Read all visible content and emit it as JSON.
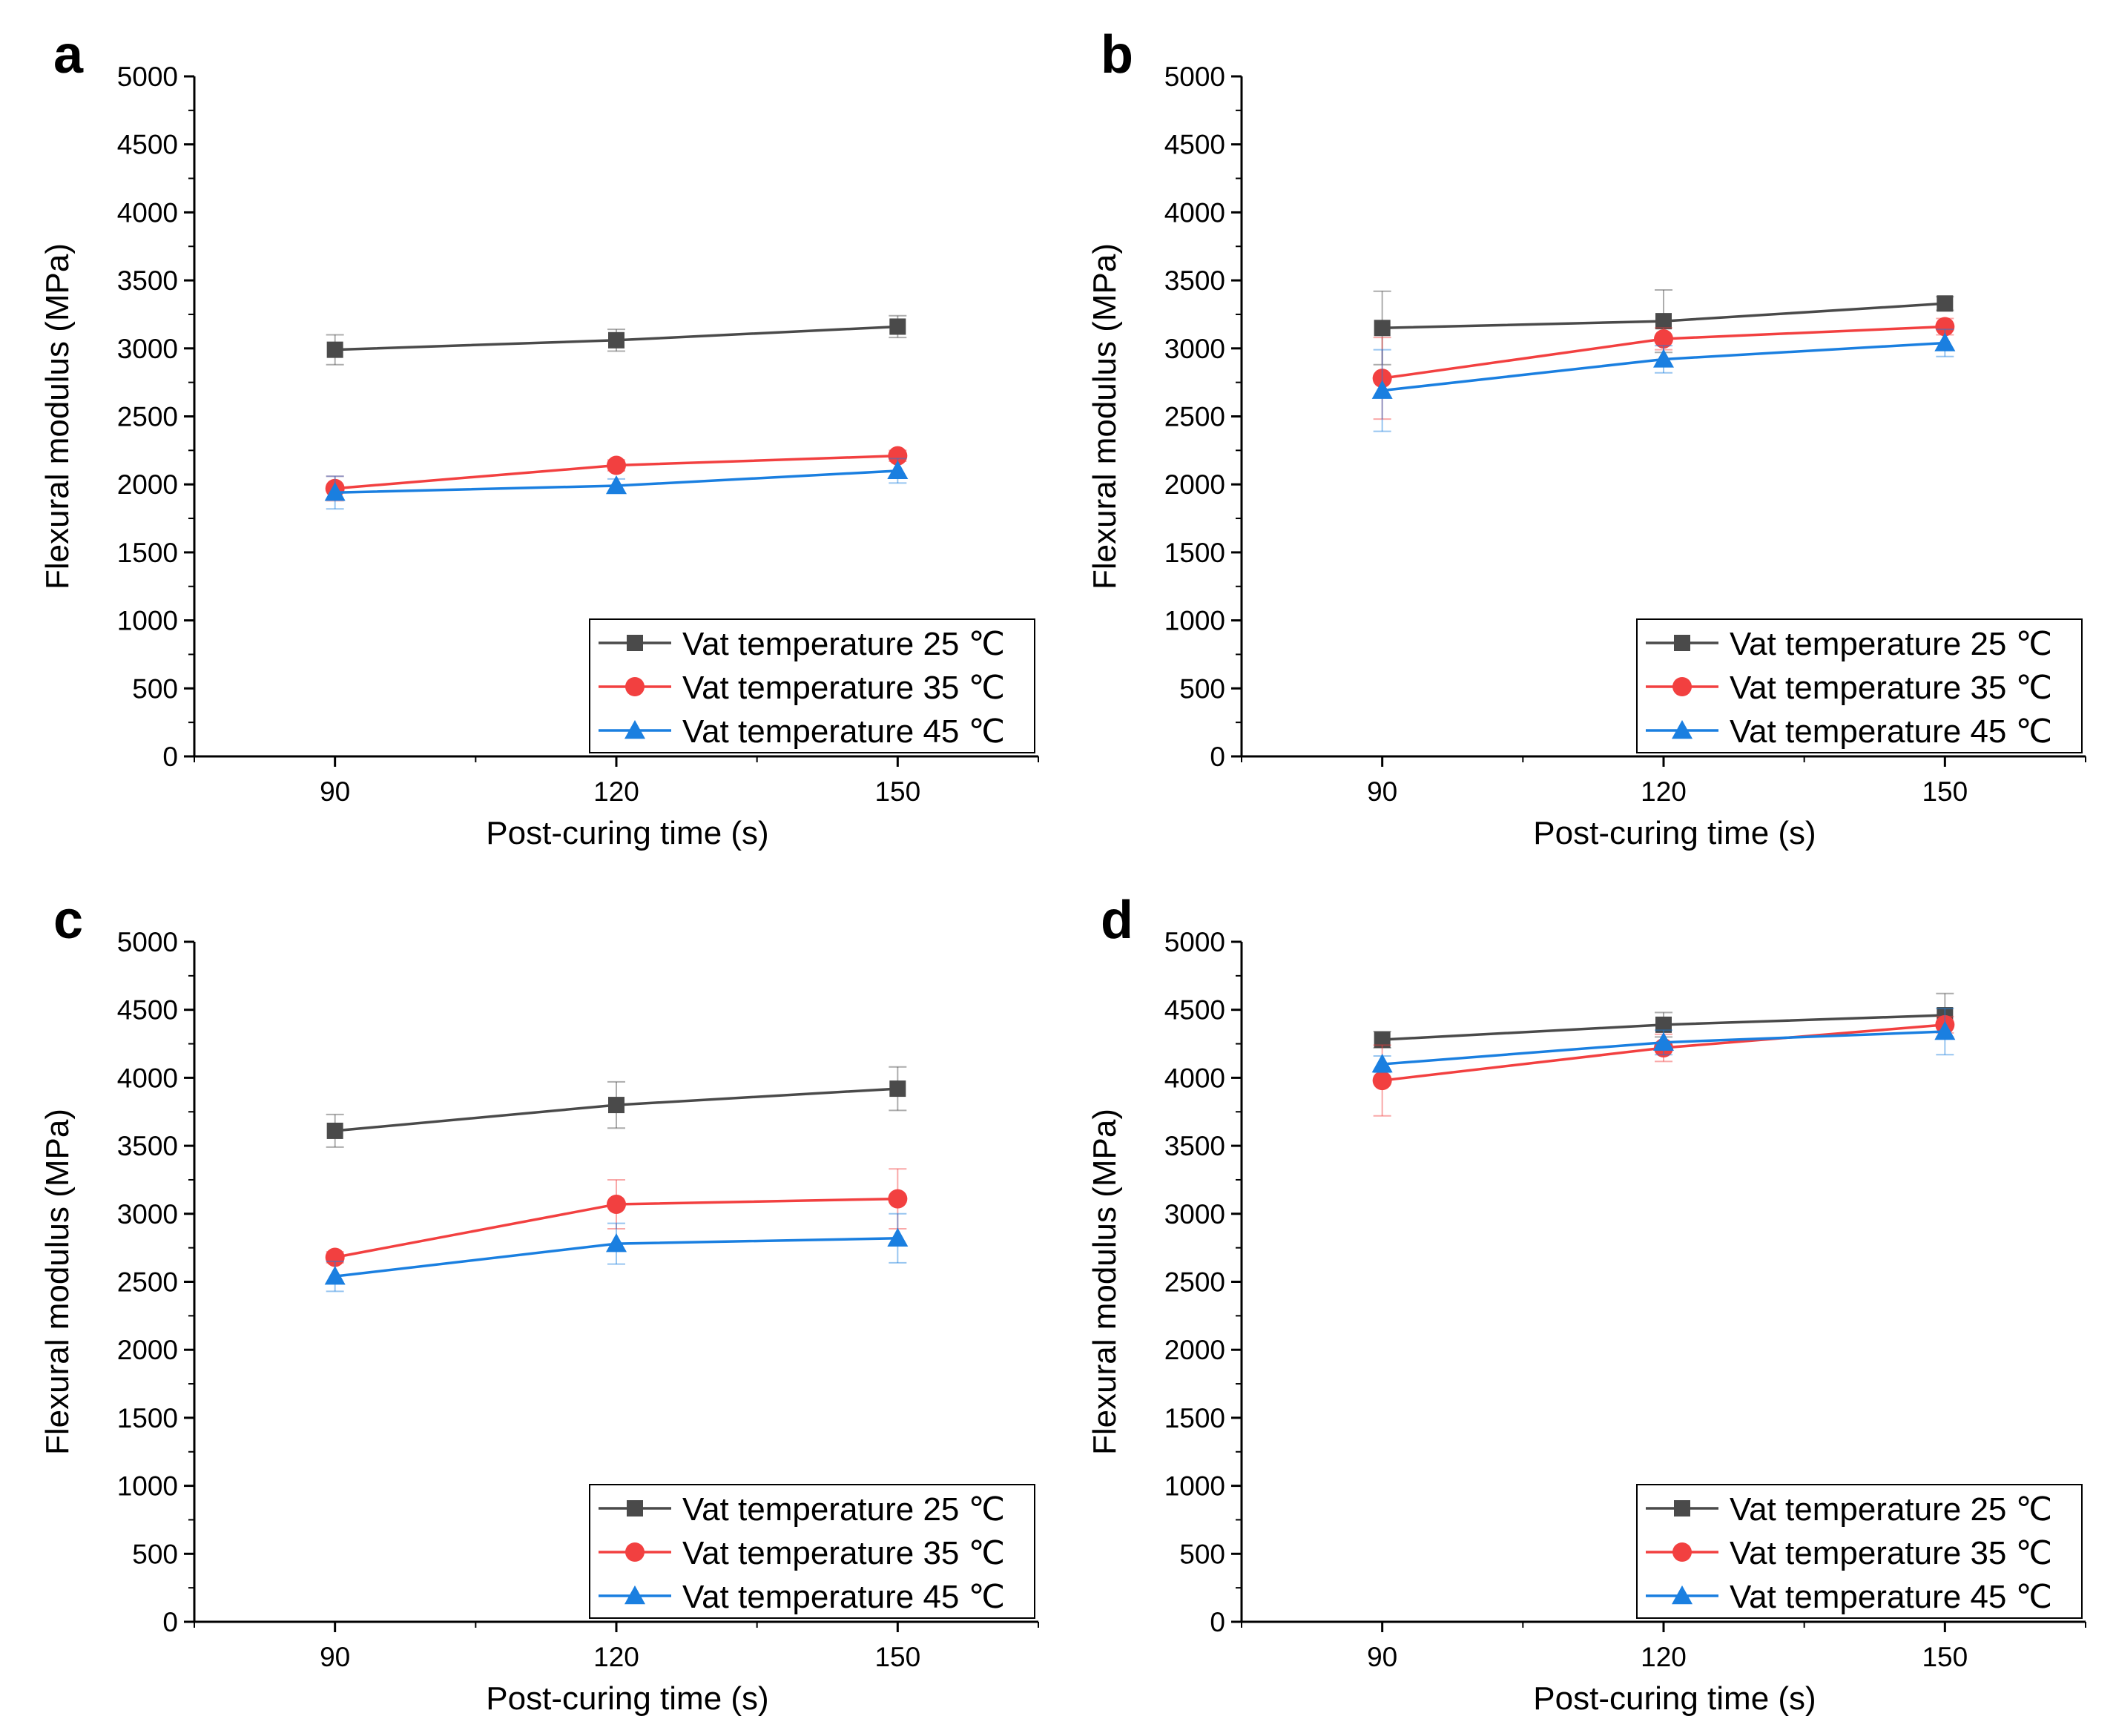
{
  "figure": {
    "x_axis_title": "Post-curing time (s)",
    "y_axis_title": "Flexural modulus (MPa)",
    "legend": [
      "Vat temperature 25 ℃",
      "Vat temperature 35 ℃",
      "Vat temperature 45 ℃"
    ],
    "series_colors": [
      "#4a4a4a",
      "#f24040",
      "#1a7fe0"
    ],
    "markers": [
      "square",
      "circle",
      "triangle"
    ]
  },
  "chart_data": [
    {
      "type": "line",
      "panel": "a",
      "title": "",
      "xlabel": "Post-curing time (s)",
      "ylabel": "Flexural modulus (MPa)",
      "x": [
        90,
        120,
        150
      ],
      "xlim": [
        75,
        165
      ],
      "ylim": [
        0,
        5000
      ],
      "yticks": [
        0,
        500,
        1000,
        1500,
        2000,
        2500,
        3000,
        3500,
        4000,
        4500,
        5000
      ],
      "legend_position": "bottom-right",
      "series": [
        {
          "name": "Vat temperature 25 ℃",
          "values": [
            2990,
            3060,
            3160
          ],
          "errors": [
            110,
            80,
            80
          ]
        },
        {
          "name": "Vat temperature 35 ℃",
          "values": [
            1970,
            2140,
            2210
          ],
          "errors": [
            90,
            40,
            40
          ]
        },
        {
          "name": "Vat temperature 45 ℃",
          "values": [
            1940,
            1990,
            2100
          ],
          "errors": [
            120,
            50,
            90
          ]
        }
      ]
    },
    {
      "type": "line",
      "panel": "b",
      "title": "",
      "xlabel": "Post-curing time (s)",
      "ylabel": "Flexural modulus (MPa)",
      "x": [
        90,
        120,
        150
      ],
      "xlim": [
        75,
        165
      ],
      "ylim": [
        0,
        5000
      ],
      "yticks": [
        0,
        500,
        1000,
        1500,
        2000,
        2500,
        3000,
        3500,
        4000,
        4500,
        5000
      ],
      "legend_position": "bottom-right",
      "series": [
        {
          "name": "Vat temperature 25 ℃",
          "values": [
            3150,
            3200,
            3330
          ],
          "errors": [
            270,
            230,
            50
          ]
        },
        {
          "name": "Vat temperature 35 ℃",
          "values": [
            2780,
            3070,
            3160
          ],
          "errors": [
            300,
            80,
            60
          ]
        },
        {
          "name": "Vat temperature 45 ℃",
          "values": [
            2690,
            2920,
            3040
          ],
          "errors": [
            300,
            100,
            100
          ]
        }
      ]
    },
    {
      "type": "line",
      "panel": "c",
      "title": "",
      "xlabel": "Post-curing time (s)",
      "ylabel": "Flexural modulus (MPa)",
      "x": [
        90,
        120,
        150
      ],
      "xlim": [
        75,
        165
      ],
      "ylim": [
        0,
        5000
      ],
      "yticks": [
        0,
        500,
        1000,
        1500,
        2000,
        2500,
        3000,
        3500,
        4000,
        4500,
        5000
      ],
      "legend_position": "bottom-right",
      "series": [
        {
          "name": "Vat temperature 25 ℃",
          "values": [
            3610,
            3800,
            3920
          ],
          "errors": [
            120,
            170,
            160
          ]
        },
        {
          "name": "Vat temperature 35 ℃",
          "values": [
            2680,
            3070,
            3110
          ],
          "errors": [
            40,
            180,
            220
          ]
        },
        {
          "name": "Vat temperature 45 ℃",
          "values": [
            2540,
            2780,
            2820
          ],
          "errors": [
            110,
            150,
            180
          ]
        }
      ]
    },
    {
      "type": "line",
      "panel": "d",
      "title": "",
      "xlabel": "Post-curing time (s)",
      "ylabel": "Flexural modulus (MPa)",
      "x": [
        90,
        120,
        150
      ],
      "xlim": [
        75,
        165
      ],
      "ylim": [
        0,
        5000
      ],
      "yticks": [
        0,
        500,
        1000,
        1500,
        2000,
        2500,
        3000,
        3500,
        4000,
        4500,
        5000
      ],
      "legend_position": "bottom-right",
      "series": [
        {
          "name": "Vat temperature 25 ℃",
          "values": [
            4280,
            4390,
            4460
          ],
          "errors": [
            60,
            90,
            160
          ]
        },
        {
          "name": "Vat temperature 35 ℃",
          "values": [
            3980,
            4220,
            4390
          ],
          "errors": [
            260,
            100,
            60
          ]
        },
        {
          "name": "Vat temperature 45 ℃",
          "values": [
            4100,
            4260,
            4340
          ],
          "errors": [
            60,
            90,
            170
          ]
        }
      ]
    }
  ]
}
